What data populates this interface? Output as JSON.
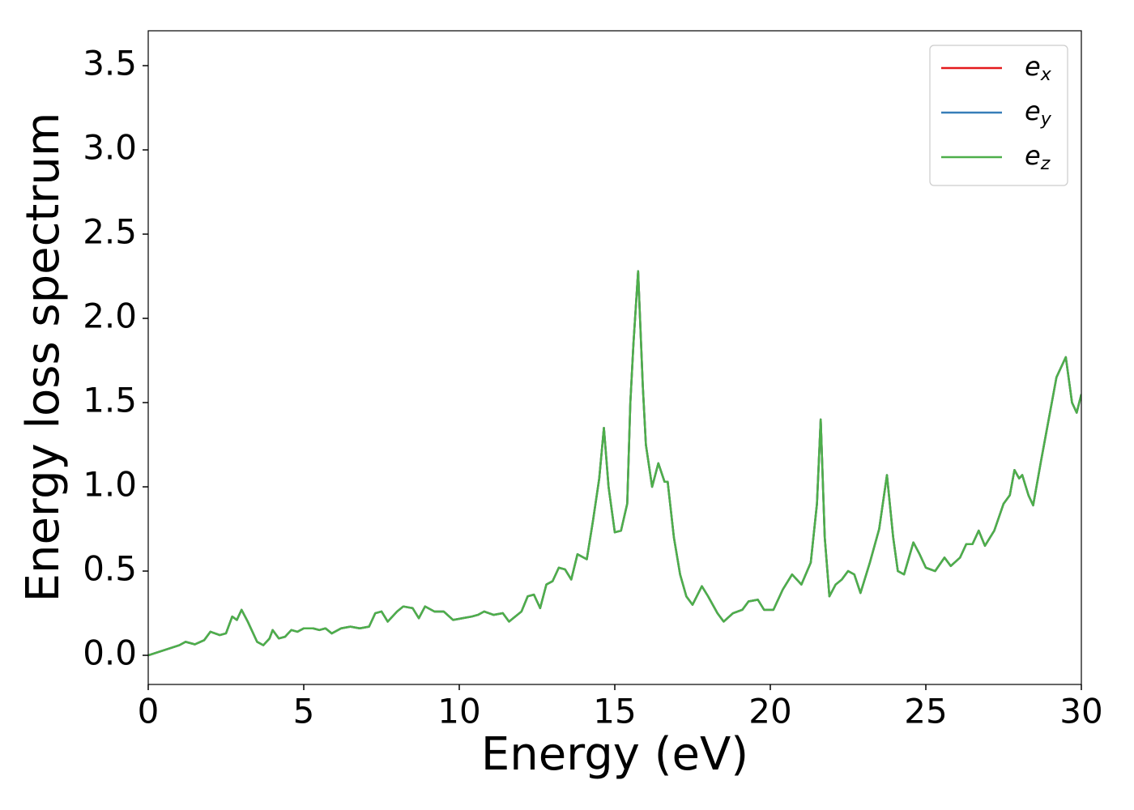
{
  "chart_data": {
    "type": "line",
    "xlabel": "Energy (eV)",
    "ylabel": "Energy loss spectrum",
    "xlim": [
      0,
      30
    ],
    "ylim": [
      -0.173,
      3.707
    ],
    "xticks": [
      0,
      5,
      10,
      15,
      20,
      25,
      30
    ],
    "yticks": [
      {
        "value": 0,
        "label": "0.0"
      },
      0.5,
      {
        "value": 1,
        "label": "1.0"
      },
      1.5,
      {
        "value": 2,
        "label": "2.0"
      },
      2.5,
      {
        "value": 3,
        "label": "3.0"
      },
      3.5
    ],
    "grid": false,
    "legend": "upper right",
    "x": [
      0,
      0.5,
      1.0,
      1.2,
      1.5,
      1.8,
      2.0,
      2.3,
      2.5,
      2.7,
      2.85,
      3.0,
      3.2,
      3.5,
      3.7,
      3.9,
      4.0,
      4.2,
      4.4,
      4.6,
      4.8,
      5.0,
      5.3,
      5.5,
      5.7,
      5.9,
      6.2,
      6.5,
      6.8,
      7.1,
      7.3,
      7.5,
      7.7,
      8.0,
      8.2,
      8.5,
      8.7,
      8.9,
      9.2,
      9.5,
      9.8,
      10.1,
      10.4,
      10.6,
      10.8,
      11.1,
      11.4,
      11.6,
      12.0,
      12.2,
      12.4,
      12.6,
      12.8,
      13.0,
      13.2,
      13.4,
      13.6,
      13.8,
      14.1,
      14.3,
      14.5,
      14.65,
      14.8,
      15.0,
      15.2,
      15.4,
      15.5,
      15.6,
      15.75,
      15.9,
      16.0,
      16.2,
      16.4,
      16.6,
      16.7,
      16.9,
      17.1,
      17.3,
      17.5,
      17.8,
      18.0,
      18.3,
      18.5,
      18.8,
      19.1,
      19.3,
      19.6,
      19.8,
      20.1,
      20.4,
      20.7,
      21.0,
      21.3,
      21.5,
      21.62,
      21.75,
      21.9,
      22.1,
      22.3,
      22.5,
      22.7,
      22.9,
      23.2,
      23.5,
      23.75,
      23.95,
      24.1,
      24.3,
      24.6,
      24.8,
      25.0,
      25.3,
      25.6,
      25.8,
      26.1,
      26.3,
      26.5,
      26.7,
      26.9,
      27.2,
      27.5,
      27.7,
      27.85,
      28.0,
      28.1,
      28.3,
      28.45,
      28.7,
      28.9,
      29.2,
      29.5,
      29.7,
      29.85,
      30.0
    ],
    "series": [
      {
        "name": "ex",
        "color": "#e41a1c",
        "values": [
          0,
          0.03,
          0.06,
          0.08,
          0.065,
          0.09,
          0.14,
          0.12,
          0.13,
          0.23,
          0.21,
          0.27,
          0.2,
          0.08,
          0.06,
          0.1,
          0.15,
          0.1,
          0.11,
          0.15,
          0.14,
          0.16,
          0.16,
          0.15,
          0.16,
          0.13,
          0.16,
          0.17,
          0.16,
          0.17,
          0.25,
          0.26,
          0.2,
          0.26,
          0.29,
          0.28,
          0.22,
          0.29,
          0.26,
          0.26,
          0.21,
          0.22,
          0.23,
          0.24,
          0.26,
          0.24,
          0.25,
          0.2,
          0.26,
          0.35,
          0.36,
          0.28,
          0.42,
          0.44,
          0.52,
          0.51,
          0.45,
          0.6,
          0.57,
          0.8,
          1.05,
          1.35,
          1.0,
          0.73,
          0.74,
          0.9,
          1.5,
          1.85,
          2.28,
          1.6,
          1.25,
          1.0,
          1.14,
          1.03,
          1.03,
          0.7,
          0.48,
          0.35,
          0.3,
          0.41,
          0.35,
          0.25,
          0.2,
          0.25,
          0.27,
          0.32,
          0.33,
          0.27,
          0.27,
          0.39,
          0.48,
          0.42,
          0.55,
          0.9,
          1.4,
          0.7,
          0.35,
          0.42,
          0.45,
          0.5,
          0.48,
          0.37,
          0.55,
          0.75,
          1.07,
          0.7,
          0.5,
          0.48,
          0.67,
          0.6,
          0.52,
          0.5,
          0.58,
          0.53,
          0.58,
          0.66,
          0.66,
          0.74,
          0.65,
          0.74,
          0.9,
          0.95,
          1.1,
          1.05,
          1.07,
          0.95,
          0.89,
          1.15,
          1.35,
          1.65,
          1.77,
          1.5,
          1.44,
          1.55
        ]
      },
      {
        "name": "ey",
        "color": "#377eb8",
        "values": [
          0,
          0.03,
          0.06,
          0.08,
          0.065,
          0.09,
          0.14,
          0.12,
          0.13,
          0.23,
          0.21,
          0.27,
          0.2,
          0.08,
          0.06,
          0.1,
          0.15,
          0.1,
          0.11,
          0.15,
          0.14,
          0.16,
          0.16,
          0.15,
          0.16,
          0.13,
          0.16,
          0.17,
          0.16,
          0.17,
          0.25,
          0.26,
          0.2,
          0.26,
          0.29,
          0.28,
          0.22,
          0.29,
          0.26,
          0.26,
          0.21,
          0.22,
          0.23,
          0.24,
          0.26,
          0.24,
          0.25,
          0.2,
          0.26,
          0.35,
          0.36,
          0.28,
          0.42,
          0.44,
          0.52,
          0.51,
          0.45,
          0.6,
          0.57,
          0.8,
          1.05,
          1.35,
          1.0,
          0.73,
          0.74,
          0.9,
          1.5,
          1.85,
          2.28,
          1.6,
          1.25,
          1.0,
          1.14,
          1.03,
          1.03,
          0.7,
          0.48,
          0.35,
          0.3,
          0.41,
          0.35,
          0.25,
          0.2,
          0.25,
          0.27,
          0.32,
          0.33,
          0.27,
          0.27,
          0.39,
          0.48,
          0.42,
          0.55,
          0.9,
          1.4,
          0.7,
          0.35,
          0.42,
          0.45,
          0.5,
          0.48,
          0.37,
          0.55,
          0.75,
          1.07,
          0.7,
          0.5,
          0.48,
          0.67,
          0.6,
          0.52,
          0.5,
          0.58,
          0.53,
          0.58,
          0.66,
          0.66,
          0.74,
          0.65,
          0.74,
          0.9,
          0.95,
          1.1,
          1.05,
          1.07,
          0.95,
          0.89,
          1.15,
          1.35,
          1.65,
          1.77,
          1.5,
          1.44,
          1.55
        ]
      },
      {
        "name": "ez",
        "color": "#4daf4a",
        "values": [
          0,
          0.03,
          0.06,
          0.08,
          0.065,
          0.09,
          0.14,
          0.12,
          0.13,
          0.23,
          0.21,
          0.27,
          0.2,
          0.08,
          0.06,
          0.1,
          0.15,
          0.1,
          0.11,
          0.15,
          0.14,
          0.16,
          0.16,
          0.15,
          0.16,
          0.13,
          0.16,
          0.17,
          0.16,
          0.17,
          0.25,
          0.26,
          0.2,
          0.26,
          0.29,
          0.28,
          0.22,
          0.29,
          0.26,
          0.26,
          0.21,
          0.22,
          0.23,
          0.24,
          0.26,
          0.24,
          0.25,
          0.2,
          0.26,
          0.35,
          0.36,
          0.28,
          0.42,
          0.44,
          0.52,
          0.51,
          0.45,
          0.6,
          0.57,
          0.8,
          1.05,
          1.35,
          1.0,
          0.73,
          0.74,
          0.9,
          1.5,
          1.85,
          2.28,
          1.6,
          1.25,
          1.0,
          1.14,
          1.03,
          1.03,
          0.7,
          0.48,
          0.35,
          0.3,
          0.41,
          0.35,
          0.25,
          0.2,
          0.25,
          0.27,
          0.32,
          0.33,
          0.27,
          0.27,
          0.39,
          0.48,
          0.42,
          0.55,
          0.9,
          1.4,
          0.7,
          0.35,
          0.42,
          0.45,
          0.5,
          0.48,
          0.37,
          0.55,
          0.75,
          1.07,
          0.7,
          0.5,
          0.48,
          0.67,
          0.6,
          0.52,
          0.5,
          0.58,
          0.53,
          0.58,
          0.66,
          0.66,
          0.74,
          0.65,
          0.74,
          0.9,
          0.95,
          1.1,
          1.05,
          1.07,
          0.95,
          0.89,
          1.15,
          1.35,
          1.65,
          1.77,
          1.5,
          1.44,
          1.55
        ]
      }
    ]
  }
}
